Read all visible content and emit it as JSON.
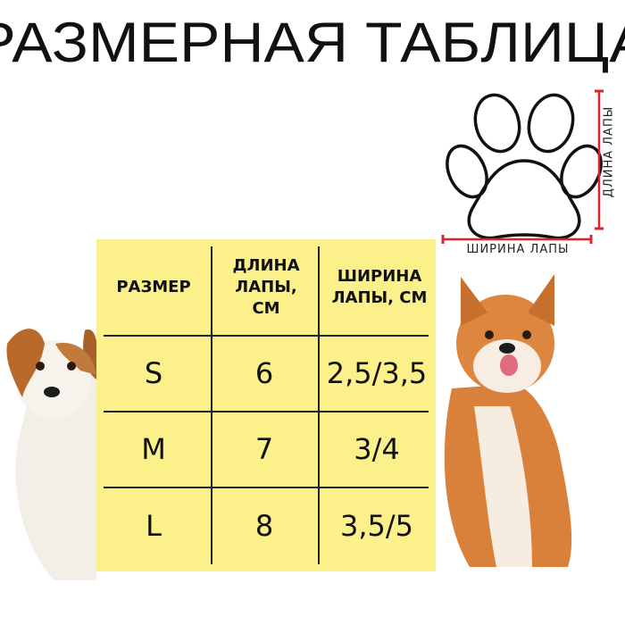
{
  "title": "РАЗМЕРНАЯ ТАБЛИЦА",
  "diagram": {
    "icon": "paw-print-icon",
    "width_label": "ШИРИНА ЛАПЫ",
    "length_label": "ДЛИНА ЛАПЫ",
    "measure_color": "#d9252b"
  },
  "table": {
    "background": "#fcf08a",
    "headers": [
      "РАЗМЕР",
      "ДЛИНА ЛАПЫ, СМ",
      "ШИРИНА ЛАПЫ, СМ"
    ],
    "rows": [
      {
        "size": "S",
        "length": "6",
        "width": "2,5/3,5"
      },
      {
        "size": "M",
        "length": "7",
        "width": "3/4"
      },
      {
        "size": "L",
        "length": "8",
        "width": "3,5/5"
      }
    ]
  }
}
